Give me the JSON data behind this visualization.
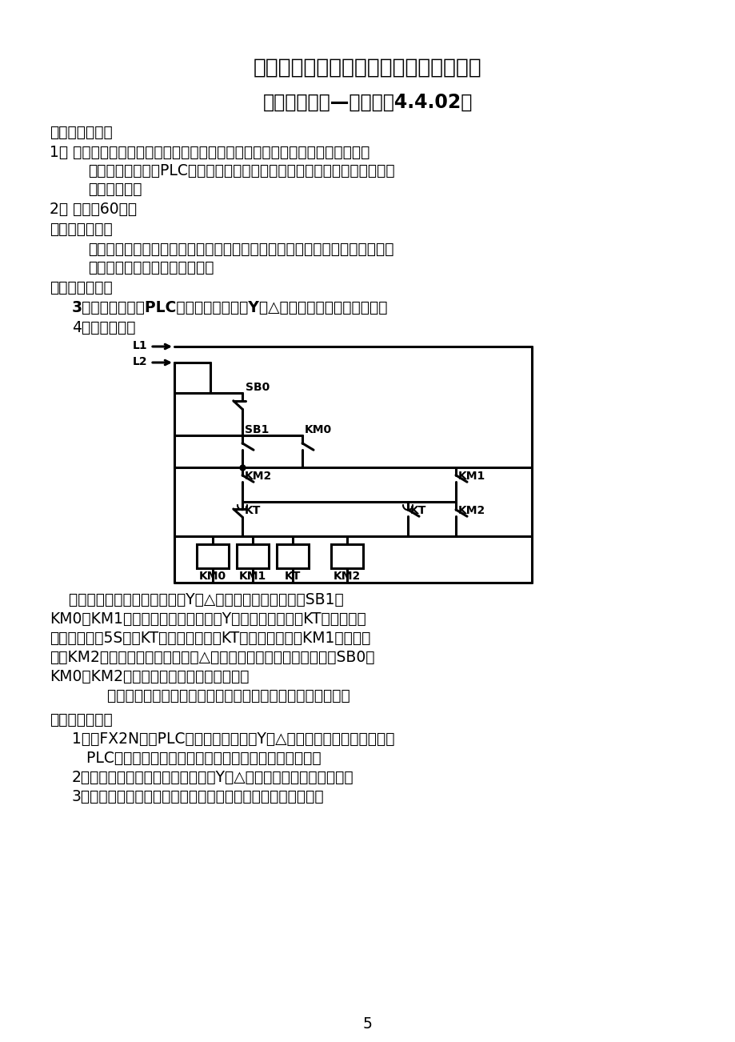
{
  "title1": "上海市《维修电工中级工》职业技能鉴定",
  "title2": "可编程控制器—试题单（4.4.02）",
  "line1": "三、考核要求：",
  "line2": "1、 要求：根据加工工艺过程，在规定的时间内完成控制电路的基本指令设计，",
  "line3": "将编制的程序输入PLC，按照被控制设备的动作要求进行调试，达到考核题",
  "line4": "规定的要求。",
  "line5": "2、 时间：60分钟",
  "line6": "四、评分原则：",
  "line7": "按照完成的工作是否达到了全部或部分要求，由考评员按评分标准进行评分。",
  "line8": "在规定的时间内考核不得延时。",
  "line9": "三、考核内容：",
  "line10": "3、题目名称：用PLC控制三相异步电机Y－△启动继电器控制电路系统。",
  "line11": "4、题目内容：",
  "desc1": "    图示为继电器控制异步电动机Y－△起动电路。按启动按钮SB1，",
  "desc2": "KM0、KM1接触器接通，电动机接成Y形联结启动。此时KT时间继电器",
  "desc3": "接通，当延时5S后，KT常闭触点断开，KT常开触点闭合，KM1接触器失",
  "desc4": "电，KM2接触器接通，电动机接成△形联结投入运行。当按停止按钮SB0，",
  "desc5": "KM0、KM2接触器失电，电动机停止运行。",
  "desc6": "    各元器件说明如图，在自行分析电路功能后，完成考核要求。",
  "req0": "四、考核要求：",
  "req1": "1、用FX2N系列PLC按三相异步电动机Y－△启动继电器控制电路图改成",
  "req2": "   PLC梯形图、写出语句表（必须有栈存指令及块指令）。",
  "req3": "2、用模拟设置控制三相异步电动机Y－△启动继电器电路运行过程。",
  "req4": "3、按基本指令编制的程序，进行程序输入并完成系统、调试。",
  "page": "5",
  "bg": "#ffffff",
  "fg": "#000000"
}
